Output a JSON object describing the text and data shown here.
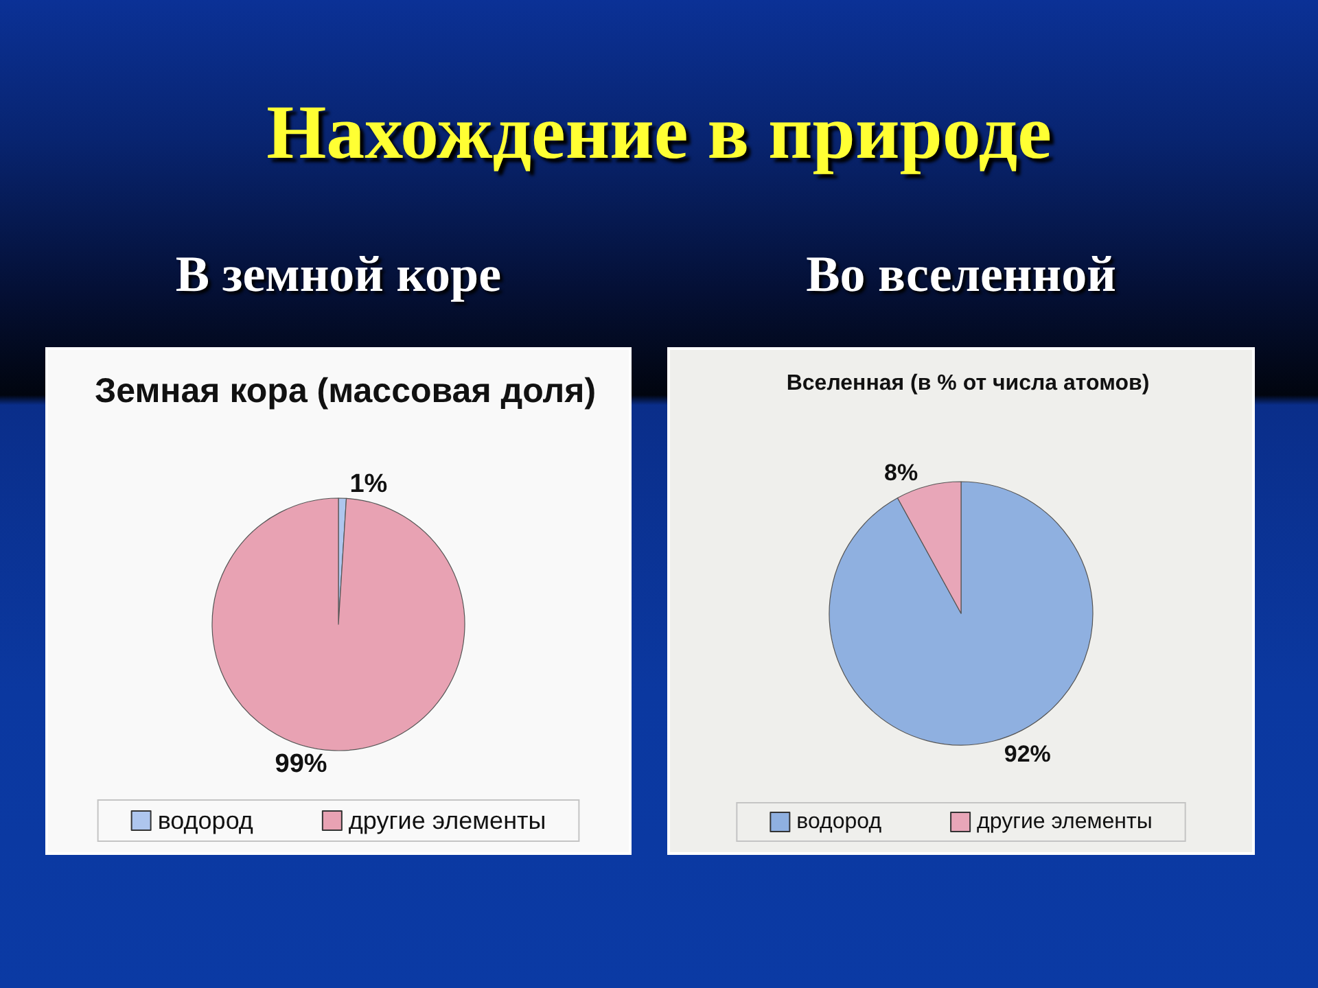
{
  "chart_data": [
    {
      "type": "other",
      "title": "Нахождение в природе"
    },
    {
      "type": "pie",
      "subtitle": "В земной коре",
      "title": "Земная кора (массовая доля)",
      "categories": [
        "водород",
        "другие элементы"
      ],
      "values": [
        1,
        99
      ],
      "colors": [
        "#aec6ee",
        "#e8a2b3"
      ],
      "value_labels": [
        "1%",
        "99%"
      ],
      "legend": "bottom"
    },
    {
      "type": "pie",
      "subtitle": "Во вселенной",
      "title": "Вселенная (в % от числа атомов)",
      "categories": [
        "водород",
        "другие элементы"
      ],
      "values": [
        92,
        8
      ],
      "colors": [
        "#8fb0e0",
        "#e8a6b8"
      ],
      "value_labels": [
        "92%",
        "8%"
      ],
      "legend": "bottom"
    }
  ]
}
